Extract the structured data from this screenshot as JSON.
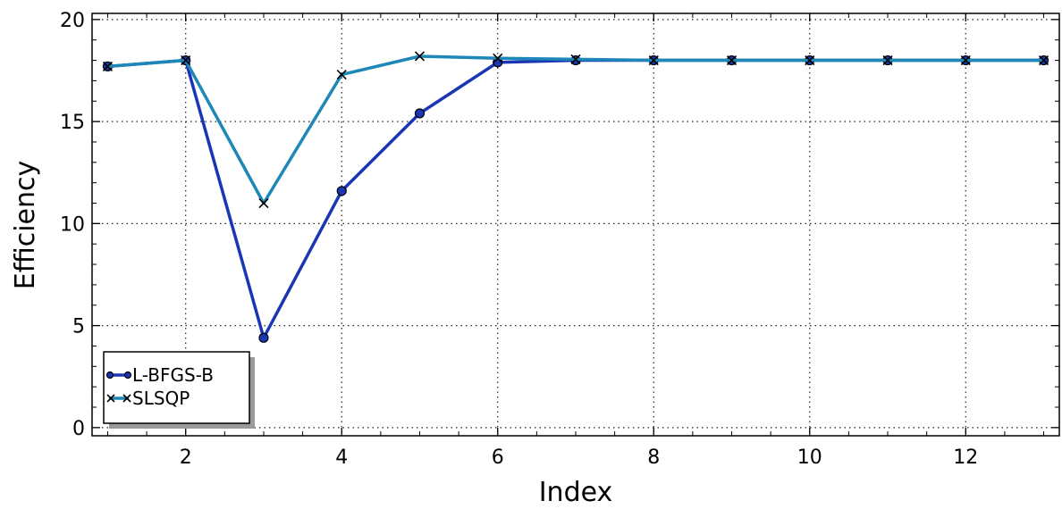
{
  "chart_data": {
    "type": "line",
    "xlabel": "Index",
    "ylabel": "Efficiency",
    "xlim": [
      0.8,
      13.2
    ],
    "ylim": [
      -0.4,
      20.3
    ],
    "xticks": [
      2,
      4,
      6,
      8,
      10,
      12
    ],
    "yticks": [
      0,
      5,
      10,
      15,
      20
    ],
    "grid": true,
    "legend_position": "lower-left",
    "series": [
      {
        "name": "L-BFGS-B",
        "marker": "circle",
        "color": "#1b36b5",
        "x": [
          1,
          2,
          3,
          4,
          5,
          6,
          7,
          8,
          9,
          10,
          11,
          12,
          13
        ],
        "y": [
          17.7,
          18.0,
          4.4,
          11.6,
          15.4,
          17.9,
          18.0,
          18.0,
          18.0,
          18.0,
          18.0,
          18.0,
          18.0
        ]
      },
      {
        "name": "SLSQP",
        "marker": "x",
        "color": "#1d87b8",
        "x": [
          1,
          2,
          3,
          4,
          5,
          6,
          7,
          8,
          9,
          10,
          11,
          12,
          13
        ],
        "y": [
          17.7,
          18.0,
          11.0,
          17.3,
          18.2,
          18.1,
          18.05,
          18.0,
          18.0,
          18.0,
          18.0,
          18.0,
          18.0
        ]
      }
    ]
  }
}
